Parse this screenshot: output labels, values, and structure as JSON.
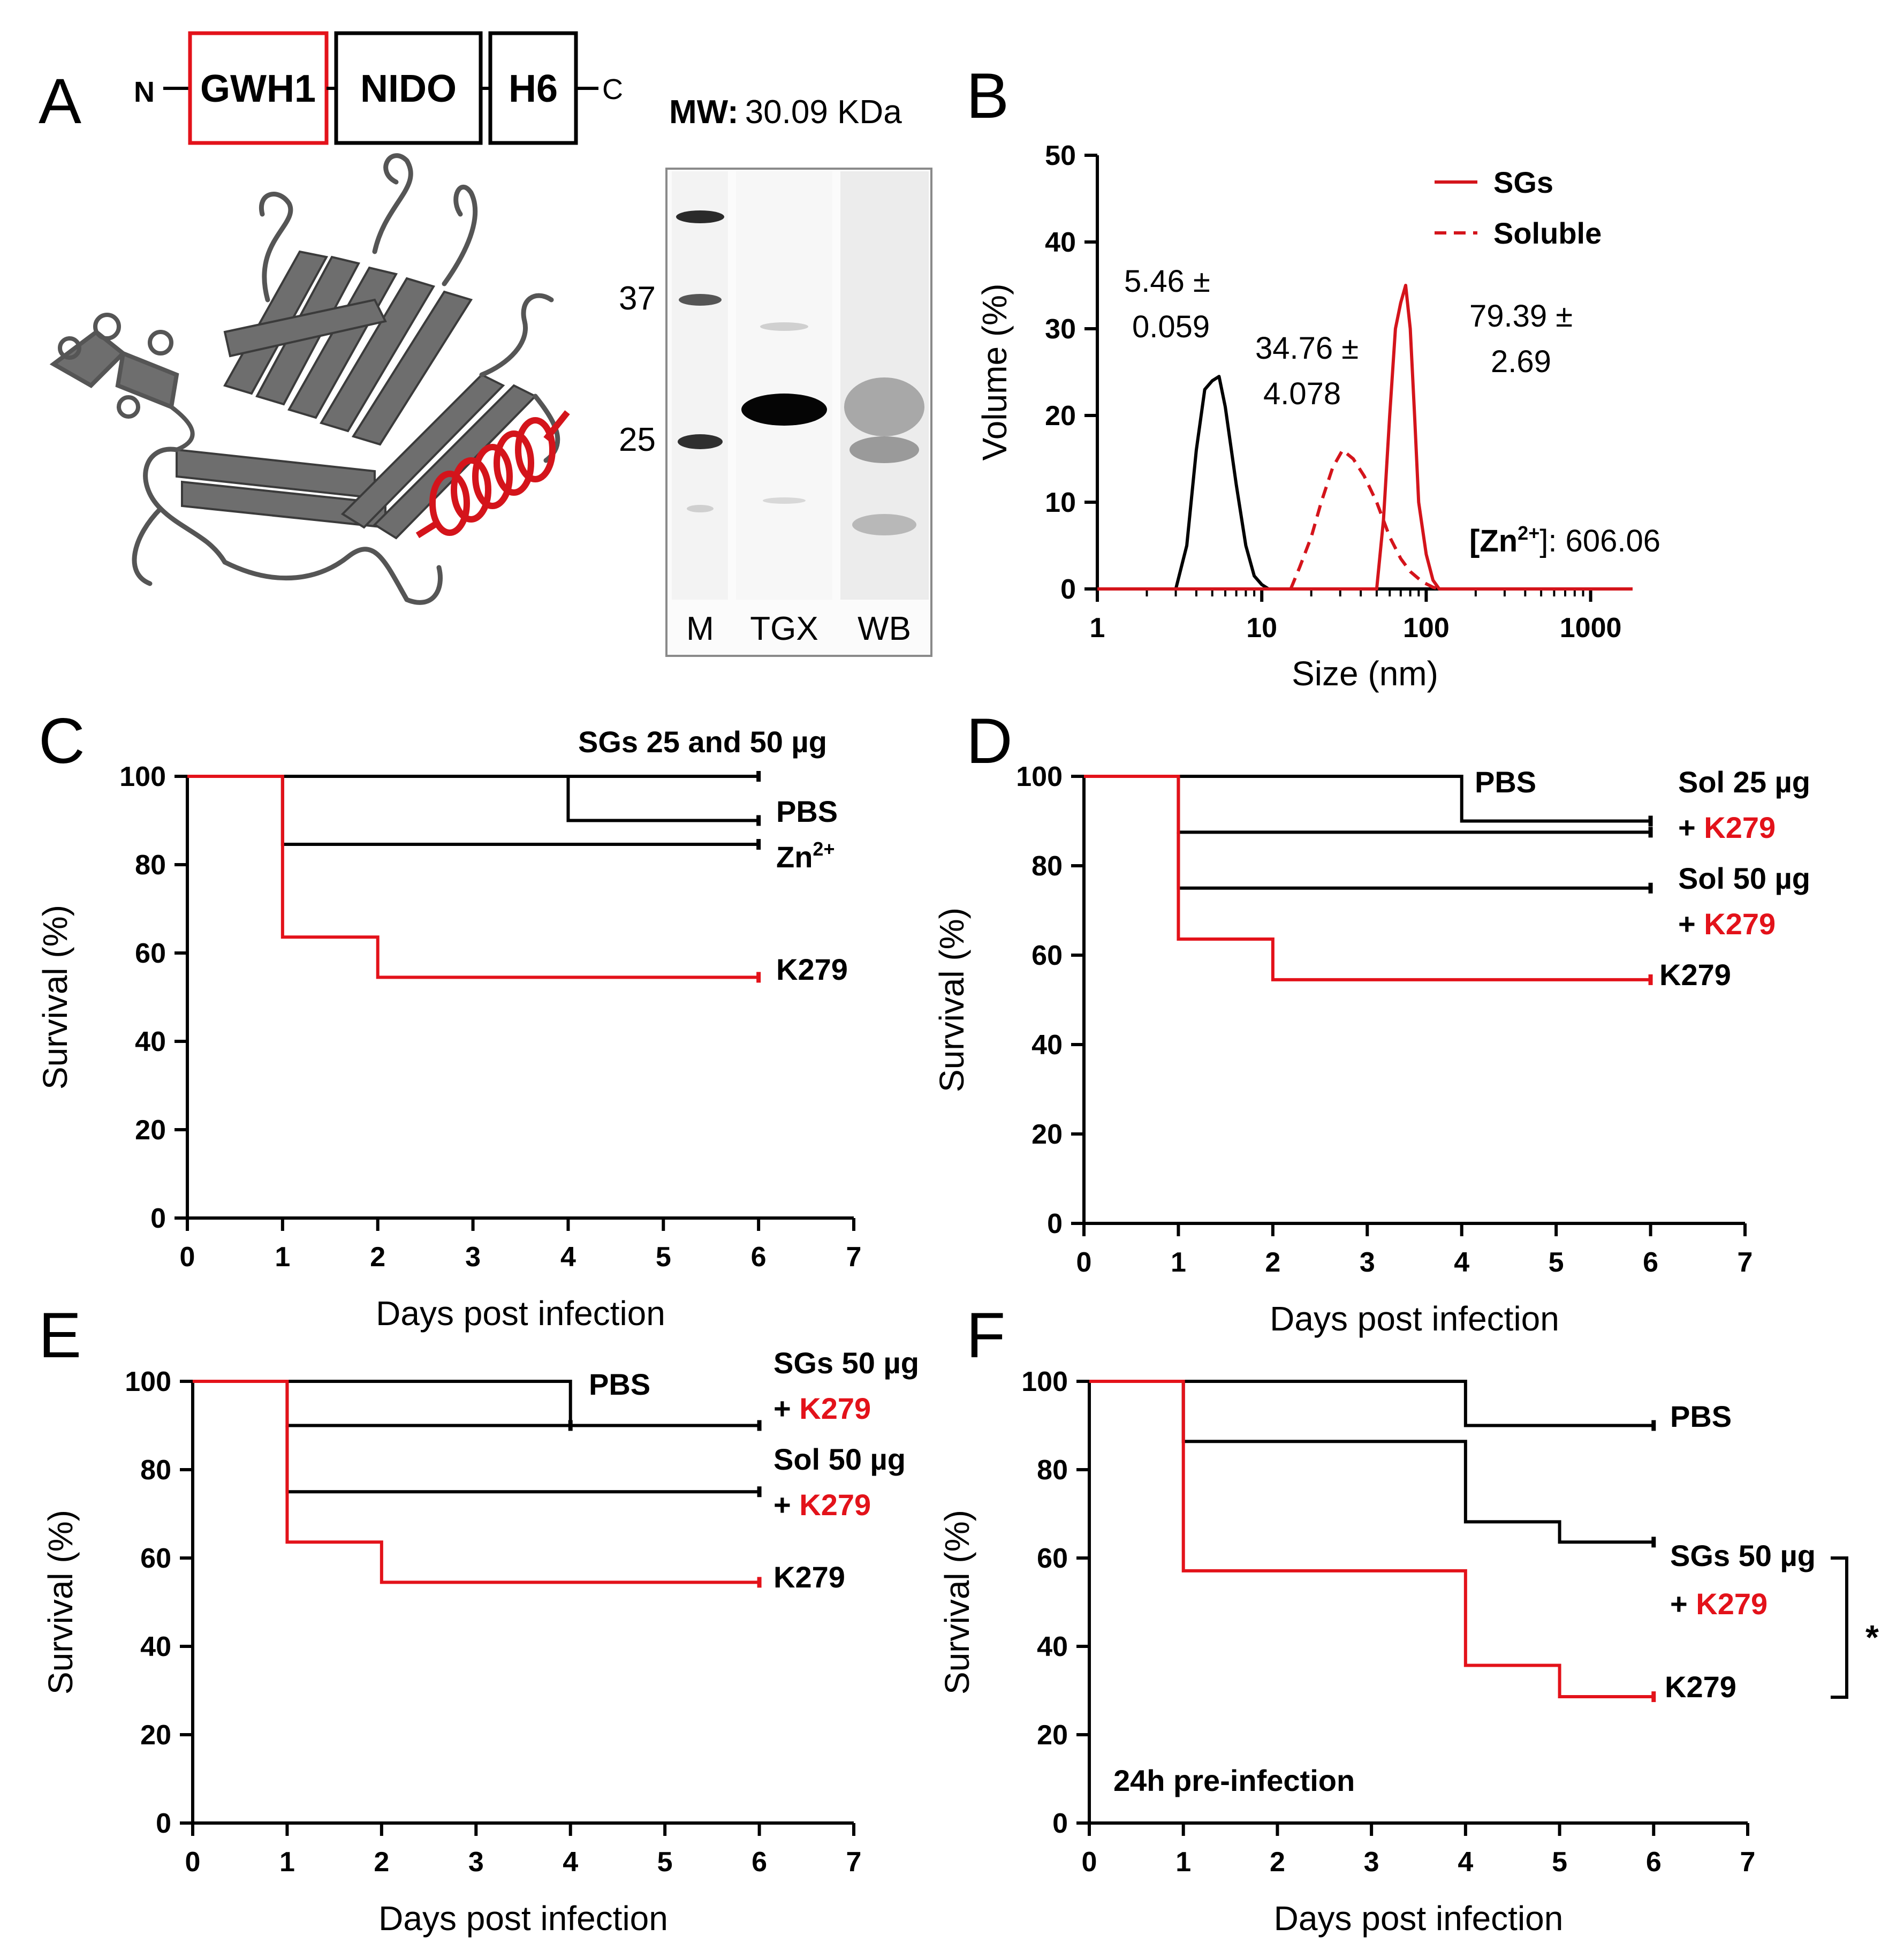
{
  "figure": {
    "panel_A": {
      "letter": "A",
      "construct": {
        "n_term": "N",
        "c_term": "C",
        "domains": [
          "GWH1",
          "NIDO",
          "H6"
        ]
      },
      "mw_label": "MW:",
      "mw_value": "30.09 KDa",
      "gel": {
        "markers": [
          "37",
          "25"
        ],
        "lanes": [
          "M",
          "TGX",
          "WB"
        ]
      },
      "colors": {
        "helix": "#d4141b",
        "protein": "#6e6e6e"
      }
    },
    "panel_B": {
      "letter": "B",
      "zn_label": "[Zn",
      "zn_sup": "2+",
      "zn_value": "]: 606.06"
    },
    "panel_C": {
      "letter": "C"
    },
    "panel_D": {
      "letter": "D"
    },
    "panel_E": {
      "letter": "E"
    },
    "panel_F": {
      "letter": "F",
      "annotation": "24h pre-infection",
      "significance": "*"
    }
  },
  "chart_data": [
    {
      "panel": "B",
      "type": "line",
      "xscale": "log",
      "xlabel": "Size (nm)",
      "ylabel": "Volume (%)",
      "xlim": [
        1,
        1800
      ],
      "ylim": [
        0,
        50
      ],
      "xticks": [
        "1",
        "10",
        "100",
        "1000"
      ],
      "yticks": [
        "0",
        "10",
        "20",
        "30",
        "40",
        "50"
      ],
      "legend": [
        {
          "name": "SGs",
          "style": "solid",
          "color": "#d4141b"
        },
        {
          "name": "Soluble",
          "style": "dashed",
          "color": "#d4141b"
        }
      ],
      "series": [
        {
          "name": "Zn2+",
          "color": "#000000",
          "style": "solid",
          "x": [
            1,
            3,
            3.5,
            4,
            4.5,
            5,
            5.5,
            6,
            7,
            8,
            9,
            10,
            11,
            12,
            1800
          ],
          "y": [
            0,
            0,
            5,
            16,
            23,
            24,
            24.5,
            21,
            12,
            5,
            1.5,
            0.5,
            0,
            0,
            0
          ]
        },
        {
          "name": "Soluble",
          "color": "#d4141b",
          "style": "dashed",
          "x": [
            15,
            17,
            20,
            23,
            27,
            31,
            36,
            42,
            50,
            60,
            70,
            80,
            95,
            110,
            120
          ],
          "y": [
            0,
            2.5,
            6,
            10,
            14,
            16,
            15,
            13,
            10,
            6,
            3.5,
            2,
            0.8,
            0.2,
            0
          ]
        },
        {
          "name": "SGs",
          "color": "#d4141b",
          "style": "solid",
          "x": [
            1,
            50,
            55,
            60,
            65,
            70,
            75,
            80,
            85,
            90,
            100,
            110,
            120,
            1800
          ],
          "y": [
            0,
            0,
            8,
            20,
            30,
            33,
            35,
            30,
            20,
            10,
            4,
            1,
            0,
            0
          ]
        }
      ],
      "annotations": [
        {
          "lines": [
            "5.46 ±",
            "0.059"
          ]
        },
        {
          "lines": [
            "34.76 ±",
            "4.078"
          ]
        },
        {
          "lines": [
            "79.39 ±",
            "2.69"
          ]
        }
      ]
    },
    {
      "panel": "C",
      "type": "line",
      "subtype": "survival-step",
      "xlabel": "Days post infection",
      "ylabel": "Survival (%)",
      "xlim": [
        0,
        7
      ],
      "ylim": [
        0,
        100
      ],
      "xticks": [
        "0",
        "1",
        "2",
        "3",
        "4",
        "5",
        "6",
        "7"
      ],
      "yticks": [
        "0",
        "20",
        "40",
        "60",
        "80",
        "100"
      ],
      "series": [
        {
          "name": "SGs 25 and 50 µg",
          "color": "#000000",
          "steps": [
            [
              0,
              100
            ],
            [
              6,
              100
            ]
          ]
        },
        {
          "name": "PBS",
          "color": "#000000",
          "steps": [
            [
              0,
              100
            ],
            [
              4,
              100
            ],
            [
              4,
              90
            ],
            [
              6,
              90
            ]
          ]
        },
        {
          "name": "Zn²⁺",
          "color": "#000000",
          "steps": [
            [
              1,
              100
            ],
            [
              1,
              84.6
            ],
            [
              6,
              84.6
            ]
          ]
        },
        {
          "name": "K279",
          "color": "#e3121a",
          "steps": [
            [
              0,
              100
            ],
            [
              1,
              100
            ],
            [
              1,
              63.6
            ],
            [
              2,
              63.6
            ],
            [
              2,
              54.5
            ],
            [
              6,
              54.5
            ]
          ]
        }
      ],
      "labels": [
        {
          "text": "SGs 25 and 50 µg",
          "color": "black"
        },
        {
          "text": "PBS",
          "color": "black"
        },
        {
          "text": "Zn",
          "sup": "2+",
          "color": "black"
        },
        {
          "text": "K279",
          "color": "black"
        }
      ]
    },
    {
      "panel": "D",
      "type": "line",
      "subtype": "survival-step",
      "xlabel": "Days post infection",
      "ylabel": "Survival (%)",
      "xlim": [
        0,
        7
      ],
      "ylim": [
        0,
        100
      ],
      "xticks": [
        "0",
        "1",
        "2",
        "3",
        "4",
        "5",
        "6",
        "7"
      ],
      "yticks": [
        "0",
        "20",
        "40",
        "60",
        "80",
        "100"
      ],
      "series": [
        {
          "name": "PBS",
          "color": "#000000",
          "steps": [
            [
              0,
              100
            ],
            [
              4,
              100
            ],
            [
              4,
              90
            ],
            [
              6,
              90
            ]
          ]
        },
        {
          "name": "Sol 25 µg + K279",
          "color": "#000000",
          "steps": [
            [
              1,
              100
            ],
            [
              1,
              87.5
            ],
            [
              6,
              87.5
            ]
          ]
        },
        {
          "name": "Sol 50 µg + K279",
          "color": "#000000",
          "steps": [
            [
              1,
              87.5
            ],
            [
              1,
              75
            ],
            [
              6,
              75
            ]
          ]
        },
        {
          "name": "K279",
          "color": "#e3121a",
          "steps": [
            [
              0,
              100
            ],
            [
              1,
              100
            ],
            [
              1,
              63.6
            ],
            [
              2,
              63.6
            ],
            [
              2,
              54.5
            ],
            [
              6,
              54.5
            ]
          ]
        }
      ],
      "labels": [
        {
          "text": "PBS",
          "color": "black"
        },
        {
          "text": "Sol 25 µg",
          "color": "black"
        },
        {
          "text": "+ ",
          "color": "black",
          "suffix": "K279"
        },
        {
          "text": "Sol 50 µg",
          "color": "black"
        },
        {
          "text": "+ ",
          "color": "black",
          "suffix": "K279"
        },
        {
          "text": "K279",
          "color": "black"
        }
      ]
    },
    {
      "panel": "E",
      "type": "line",
      "subtype": "survival-step",
      "xlabel": "Days post infection",
      "ylabel": "Survival (%)",
      "xlim": [
        0,
        7
      ],
      "ylim": [
        0,
        100
      ],
      "xticks": [
        "0",
        "1",
        "2",
        "3",
        "4",
        "5",
        "6",
        "7"
      ],
      "yticks": [
        "0",
        "20",
        "40",
        "60",
        "80",
        "100"
      ],
      "series": [
        {
          "name": "PBS",
          "color": "#000000",
          "steps": [
            [
              0,
              100
            ],
            [
              4,
              100
            ],
            [
              4,
              90
            ],
            [
              6,
              90
            ]
          ]
        },
        {
          "name": "SGs 50 µg + K279",
          "color": "#000000",
          "steps": [
            [
              1,
              100
            ],
            [
              1,
              90
            ],
            [
              4,
              90
            ]
          ]
        },
        {
          "name": "Sol 50 µg + K279",
          "color": "#000000",
          "steps": [
            [
              1,
              90
            ],
            [
              1,
              75
            ],
            [
              6,
              75
            ]
          ]
        },
        {
          "name": "K279",
          "color": "#e3121a",
          "steps": [
            [
              0,
              100
            ],
            [
              1,
              100
            ],
            [
              1,
              63.6
            ],
            [
              2,
              63.6
            ],
            [
              2,
              54.5
            ],
            [
              6,
              54.5
            ]
          ]
        }
      ],
      "labels": [
        {
          "text": "PBS",
          "color": "black"
        },
        {
          "text": "SGs 50 µg",
          "color": "black"
        },
        {
          "text": "+ ",
          "color": "black",
          "suffix": "K279"
        },
        {
          "text": "Sol 50 µg",
          "color": "black"
        },
        {
          "text": "+ ",
          "color": "black",
          "suffix": "K279"
        },
        {
          "text": "K279",
          "color": "black"
        }
      ]
    },
    {
      "panel": "F",
      "type": "line",
      "subtype": "survival-step",
      "xlabel": "Days post infection",
      "ylabel": "Survival (%)",
      "xlim": [
        0,
        7
      ],
      "ylim": [
        0,
        100
      ],
      "xticks": [
        "0",
        "1",
        "2",
        "3",
        "4",
        "5",
        "6",
        "7"
      ],
      "yticks": [
        "0",
        "20",
        "40",
        "60",
        "80",
        "100"
      ],
      "series": [
        {
          "name": "PBS",
          "color": "#000000",
          "steps": [
            [
              0,
              100
            ],
            [
              4,
              100
            ],
            [
              4,
              90
            ],
            [
              6,
              90
            ]
          ]
        },
        {
          "name": "SGs 50 µg + K279",
          "color": "#000000",
          "steps": [
            [
              1,
              100
            ],
            [
              1,
              86.4
            ],
            [
              4,
              86.4
            ],
            [
              4,
              68.2
            ],
            [
              5,
              68.2
            ],
            [
              5,
              63.6
            ],
            [
              6,
              63.6
            ]
          ]
        },
        {
          "name": "K279",
          "color": "#e3121a",
          "steps": [
            [
              0,
              100
            ],
            [
              1,
              100
            ],
            [
              1,
              57.1
            ],
            [
              4,
              57.1
            ],
            [
              4,
              35.7
            ],
            [
              5,
              35.7
            ],
            [
              5,
              28.6
            ],
            [
              6,
              28.6
            ]
          ]
        }
      ],
      "labels": [
        {
          "text": "PBS",
          "color": "black"
        },
        {
          "text": "SGs 50 µg",
          "color": "black"
        },
        {
          "text": "+ ",
          "color": "black",
          "suffix": "K279"
        },
        {
          "text": "K279",
          "color": "black"
        }
      ]
    }
  ]
}
